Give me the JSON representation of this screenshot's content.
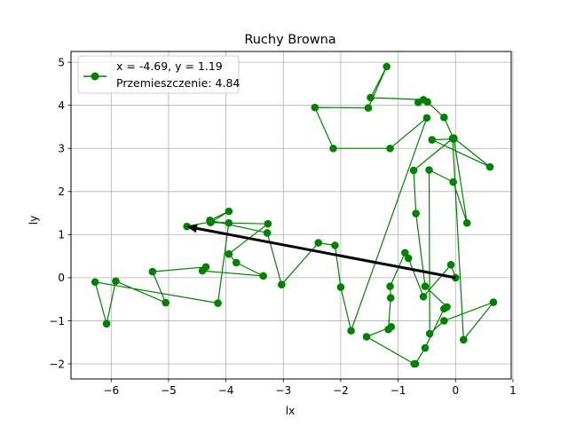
{
  "chart_data": {
    "type": "line",
    "title": "Ruchy Browna",
    "xlabel": "lx",
    "ylabel": "ly",
    "xlim": [
      -6.7,
      0.97
    ],
    "ylim": [
      -2.35,
      5.25
    ],
    "xticks": [
      -6,
      -5,
      -4,
      -3,
      -2,
      -1,
      0,
      1
    ],
    "yticks": [
      -2,
      -1,
      0,
      1,
      2,
      3,
      4,
      5
    ],
    "xtick_labels": [
      "−6",
      "−5",
      "−4",
      "−3",
      "−2",
      "−1",
      "0",
      "1"
    ],
    "ytick_labels": [
      "−2",
      "−1",
      "0",
      "1",
      "2",
      "3",
      "4",
      "5"
    ],
    "grid": true,
    "legend_position": "top-left",
    "legend": {
      "line1": "x = -4.69, y = 1.19",
      "line2": "Przemieszczenie: 4.84"
    },
    "series": [
      {
        "color": "#008000",
        "marker": "circle",
        "x": [
          0.0,
          -0.08,
          -0.56,
          -0.82,
          -0.88,
          -1.14,
          -1.13,
          -1.17,
          -1.12,
          -1.55,
          -0.72,
          -0.7,
          -0.53,
          -0.2,
          -0.15,
          -0.53,
          -0.69,
          -0.73,
          -0.05,
          0.14,
          0.66,
          -0.2,
          -0.45,
          -0.46,
          -0.04,
          0.2,
          -0.03,
          0.6,
          -0.41,
          -0.03,
          -0.2,
          -0.49,
          -0.65,
          -0.56,
          -1.48,
          -1.2,
          -1.52,
          -2.45,
          -2.13,
          -1.14,
          -0.5,
          -1.82,
          -2.0,
          -2.1,
          -2.39,
          -3.03,
          -3.28,
          -4.28,
          -3.95,
          -4.27,
          -3.27,
          -3.95,
          -3.82,
          -3.35,
          -4.41,
          -4.35,
          -5.28,
          -5.05,
          -5.92,
          -6.08,
          -6.28,
          -4.14,
          -3.95,
          -4.26,
          -4.68
        ],
        "y": [
          0.0,
          0.3,
          -0.44,
          0.45,
          0.58,
          -0.2,
          -0.47,
          -1.2,
          -1.14,
          -1.37,
          -2.0,
          -2.0,
          -1.63,
          -0.72,
          -0.68,
          -0.2,
          1.49,
          2.49,
          3.23,
          -1.44,
          -0.57,
          -1.0,
          -1.3,
          2.5,
          2.22,
          1.27,
          3.24,
          2.57,
          3.2,
          3.22,
          3.72,
          4.08,
          4.07,
          4.13,
          4.18,
          4.9,
          3.94,
          3.95,
          3.0,
          3.0,
          3.71,
          -1.23,
          -0.22,
          0.75,
          0.81,
          -0.16,
          1.04,
          1.33,
          1.54,
          1.28,
          1.25,
          0.55,
          0.35,
          0.04,
          0.16,
          0.25,
          0.14,
          -0.58,
          -0.08,
          -1.07,
          -0.1,
          -0.59,
          1.27,
          1.3,
          1.19
        ]
      }
    ],
    "annotation": {
      "type": "arrow",
      "from": [
        0.0,
        0.0
      ],
      "to": [
        -4.69,
        1.19
      ],
      "color": "#000000"
    }
  }
}
